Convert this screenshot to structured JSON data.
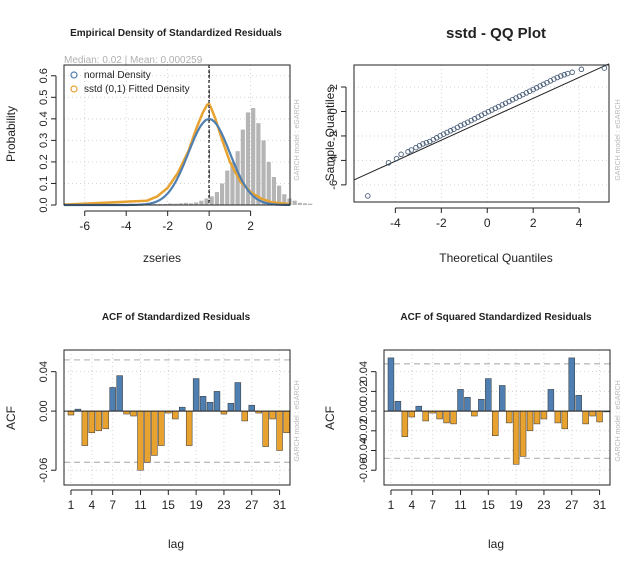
{
  "side_label": "GARCH model : eGARCH",
  "colors": {
    "steelblue": "#4f7fb0",
    "orange": "#e8a230",
    "hist": "#b5b5b5",
    "grid": "#d3d3d3",
    "ci": "#bdbdbd",
    "qqpoint": "#4a5e7a"
  },
  "chart_data": [
    {
      "type": "bar",
      "title": "Empirical Density of Standardized Residuals",
      "subtitle": "Median: 0.02 | Mean: 0.000259",
      "xlabel": "zseries",
      "ylabel": "Probability",
      "xlim": [
        -7,
        3.9
      ],
      "ylim": [
        0,
        0.65
      ],
      "xticks": [
        -6,
        -4,
        -2,
        0,
        2
      ],
      "yticks": [
        0.0,
        0.1,
        0.2,
        0.3,
        0.4,
        0.5,
        0.6
      ],
      "legend": {
        "position": "top-left",
        "entries": [
          "normal Density",
          "sstd (0,1) Fitted Density"
        ]
      },
      "histogram": {
        "bin_width": 0.25,
        "start": -7.0,
        "values": [
          0.005,
          0.005,
          0.005,
          0.005,
          0.005,
          0.005,
          0.005,
          0.005,
          0.005,
          0.005,
          0.005,
          0.005,
          0.005,
          0.005,
          0.005,
          0.005,
          0.005,
          0.005,
          0.005,
          0.005,
          0.007,
          0.006,
          0.008,
          0.01,
          0.008,
          0.012,
          0.02,
          0.03,
          0.04,
          0.06,
          0.1,
          0.16,
          0.2,
          0.25,
          0.35,
          0.43,
          0.45,
          0.38,
          0.3,
          0.2,
          0.13,
          0.09,
          0.05,
          0.03,
          0.02,
          0.01,
          0.008,
          0.006
        ]
      },
      "series": [
        {
          "name": "normal Density",
          "mean": 0,
          "sd": 1
        },
        {
          "name": "sstd (0,1) Fitted Density"
        }
      ],
      "sstd_curve": {
        "x": [
          -7,
          -3,
          -2.5,
          -2,
          -1.5,
          -1,
          -0.6,
          -0.3,
          -0.1,
          0,
          0.1,
          0.3,
          0.6,
          1,
          1.5,
          2,
          2.5,
          3,
          3.9
        ],
        "y": [
          0.002,
          0.02,
          0.04,
          0.08,
          0.15,
          0.25,
          0.36,
          0.43,
          0.465,
          0.47,
          0.45,
          0.4,
          0.31,
          0.2,
          0.11,
          0.06,
          0.03,
          0.013,
          0.004
        ]
      },
      "vlines": [
        0,
        0.02
      ],
      "hline": 0
    },
    {
      "type": "scatter",
      "title": "sstd - QQ Plot",
      "xlabel": "Theoretical Quantiles",
      "ylabel": "Sample Quantiles",
      "xlim": [
        -5.8,
        5.3
      ],
      "ylim": [
        -7.4,
        3.8
      ],
      "xticks": [
        -4,
        -2,
        0,
        2,
        4
      ],
      "yticks": [
        -6,
        -4,
        -2,
        0,
        2
      ],
      "reference_line": [
        [
          -5.8,
          -5.6
        ],
        [
          5.3,
          3.9
        ]
      ],
      "points": [
        [
          -5.2,
          -6.9
        ],
        [
          -4.3,
          -4.2
        ],
        [
          -3.95,
          -3.85
        ],
        [
          -3.75,
          -3.5
        ],
        [
          -3.45,
          -3.3
        ],
        [
          -3.3,
          -3.15
        ],
        [
          -3.1,
          -2.95
        ],
        [
          -2.95,
          -2.8
        ],
        [
          -2.8,
          -2.65
        ],
        [
          -2.65,
          -2.55
        ],
        [
          -2.5,
          -2.45
        ],
        [
          -2.35,
          -2.3
        ],
        [
          -2.2,
          -2.15
        ],
        [
          -2.05,
          -2.0
        ],
        [
          -1.9,
          -1.85
        ],
        [
          -1.75,
          -1.72
        ],
        [
          -1.6,
          -1.58
        ],
        [
          -1.45,
          -1.45
        ],
        [
          -1.3,
          -1.3
        ],
        [
          -1.15,
          -1.15
        ],
        [
          -1.0,
          -1.02
        ],
        [
          -0.85,
          -0.88
        ],
        [
          -0.7,
          -0.74
        ],
        [
          -0.55,
          -0.6
        ],
        [
          -0.4,
          -0.45
        ],
        [
          -0.25,
          -0.3
        ],
        [
          -0.1,
          -0.16
        ],
        [
          0.05,
          -0.02
        ],
        [
          0.2,
          0.12
        ],
        [
          0.35,
          0.26
        ],
        [
          0.5,
          0.4
        ],
        [
          0.65,
          0.54
        ],
        [
          0.8,
          0.68
        ],
        [
          0.95,
          0.82
        ],
        [
          1.1,
          0.96
        ],
        [
          1.25,
          1.1
        ],
        [
          1.4,
          1.24
        ],
        [
          1.55,
          1.38
        ],
        [
          1.7,
          1.52
        ],
        [
          1.85,
          1.66
        ],
        [
          2.0,
          1.8
        ],
        [
          2.15,
          1.94
        ],
        [
          2.3,
          2.08
        ],
        [
          2.45,
          2.22
        ],
        [
          2.6,
          2.36
        ],
        [
          2.75,
          2.5
        ],
        [
          2.9,
          2.65
        ],
        [
          3.05,
          2.78
        ],
        [
          3.2,
          2.9
        ],
        [
          3.35,
          3.0
        ],
        [
          3.5,
          3.1
        ],
        [
          3.7,
          3.2
        ],
        [
          4.1,
          3.45
        ],
        [
          5.1,
          3.55
        ]
      ]
    },
    {
      "type": "bar",
      "title": "ACF of Standardized Residuals",
      "xlabel": "lag",
      "ylabel": "ACF",
      "ylim": [
        -0.075,
        0.062
      ],
      "xlim": [
        0,
        32.5
      ],
      "xticks": [
        1,
        4,
        7,
        11,
        15,
        19,
        23,
        27,
        31
      ],
      "yticks": [
        -0.06,
        0.0,
        0.04
      ],
      "confidence_band": 0.052,
      "categories": [
        1,
        2,
        3,
        4,
        5,
        6,
        7,
        8,
        9,
        10,
        11,
        12,
        13,
        14,
        15,
        16,
        17,
        18,
        19,
        20,
        21,
        22,
        23,
        24,
        25,
        26,
        27,
        28,
        29,
        30,
        31,
        32
      ],
      "values": [
        -0.004,
        0.002,
        -0.035,
        -0.022,
        -0.02,
        -0.018,
        0.024,
        0.036,
        -0.003,
        -0.005,
        -0.06,
        -0.052,
        -0.045,
        -0.035,
        -0.002,
        -0.008,
        0.004,
        -0.035,
        0.033,
        0.015,
        0.009,
        0.02,
        -0.003,
        0.008,
        0.029,
        -0.01,
        0.006,
        -0.002,
        -0.036,
        -0.008,
        -0.04,
        -0.022
      ]
    },
    {
      "type": "bar",
      "title": "ACF of Squared Standardized Residuals",
      "xlabel": "lag",
      "ylabel": "ACF",
      "ylim": [
        -0.075,
        0.062
      ],
      "xlim": [
        0,
        32.5
      ],
      "xticks": [
        1,
        4,
        7,
        11,
        15,
        19,
        23,
        27,
        31
      ],
      "yticks": [
        -0.06,
        -0.04,
        -0.02,
        0.0,
        0.02,
        0.04
      ],
      "confidence_band": 0.048,
      "categories": [
        1,
        2,
        3,
        4,
        5,
        6,
        7,
        8,
        9,
        10,
        11,
        12,
        13,
        14,
        15,
        16,
        17,
        18,
        19,
        20,
        21,
        22,
        23,
        24,
        25,
        26,
        27,
        28,
        29,
        30,
        31,
        32
      ],
      "values": [
        0.054,
        0.01,
        -0.026,
        -0.006,
        0.005,
        -0.01,
        -0.002,
        -0.008,
        -0.012,
        -0.013,
        0.022,
        0.014,
        -0.005,
        0.012,
        0.033,
        -0.025,
        0.026,
        -0.012,
        -0.054,
        -0.046,
        -0.02,
        -0.013,
        -0.008,
        0.022,
        -0.012,
        -0.018,
        0.054,
        0.016,
        -0.013,
        -0.005,
        -0.011,
        0.0
      ]
    }
  ]
}
